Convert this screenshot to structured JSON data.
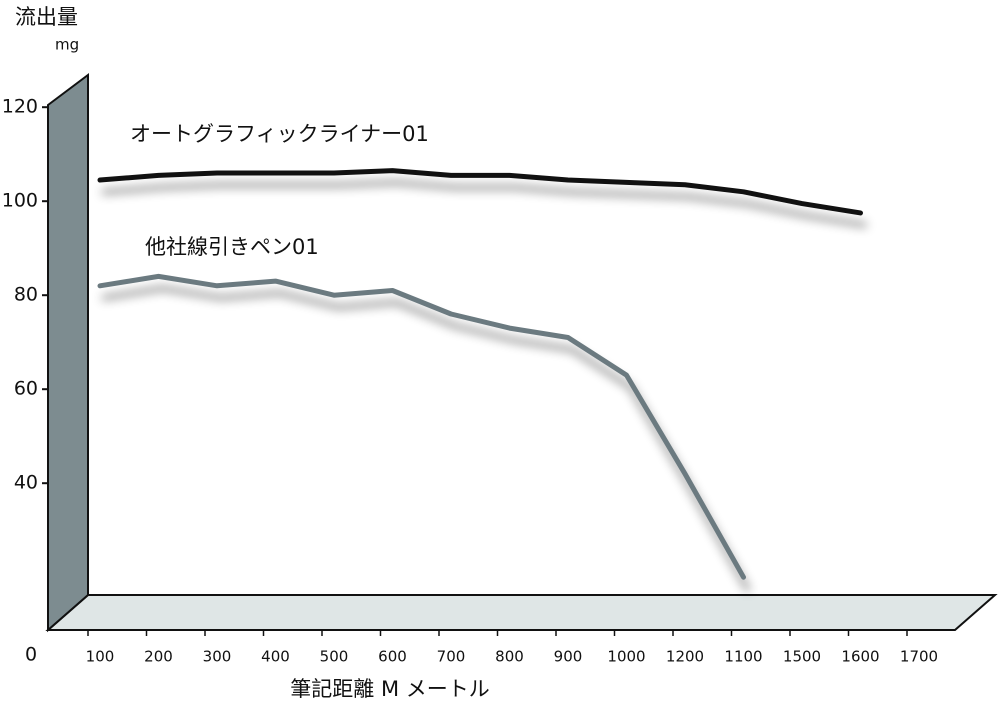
{
  "chart_data": {
    "type": "line",
    "y_title": "流出量",
    "y_unit": "mg",
    "x_title": "筆記距離 M メートル",
    "origin_label": "0",
    "categories": [
      "100",
      "200",
      "300",
      "400",
      "500",
      "600",
      "700",
      "800",
      "900",
      "1000",
      "1200",
      "1100",
      "1500",
      "1600",
      "1700"
    ],
    "series": [
      {
        "name": "オートグラフィックライナー01",
        "color": "#111111",
        "values": [
          104.5,
          105.5,
          106,
          106,
          106,
          106.5,
          105.5,
          105.5,
          104.5,
          104,
          103.5,
          102,
          99.5,
          97.5,
          null
        ]
      },
      {
        "name": "他社線引きペン01",
        "color": "#6b7a80",
        "values": [
          82,
          84,
          82,
          83,
          80,
          81,
          76,
          73,
          71,
          63,
          42,
          20,
          null,
          null,
          null
        ]
      }
    ],
    "ylim": [
      16,
      126
    ],
    "yticks": [
      40,
      60,
      80,
      100,
      120
    ],
    "grid": false
  }
}
